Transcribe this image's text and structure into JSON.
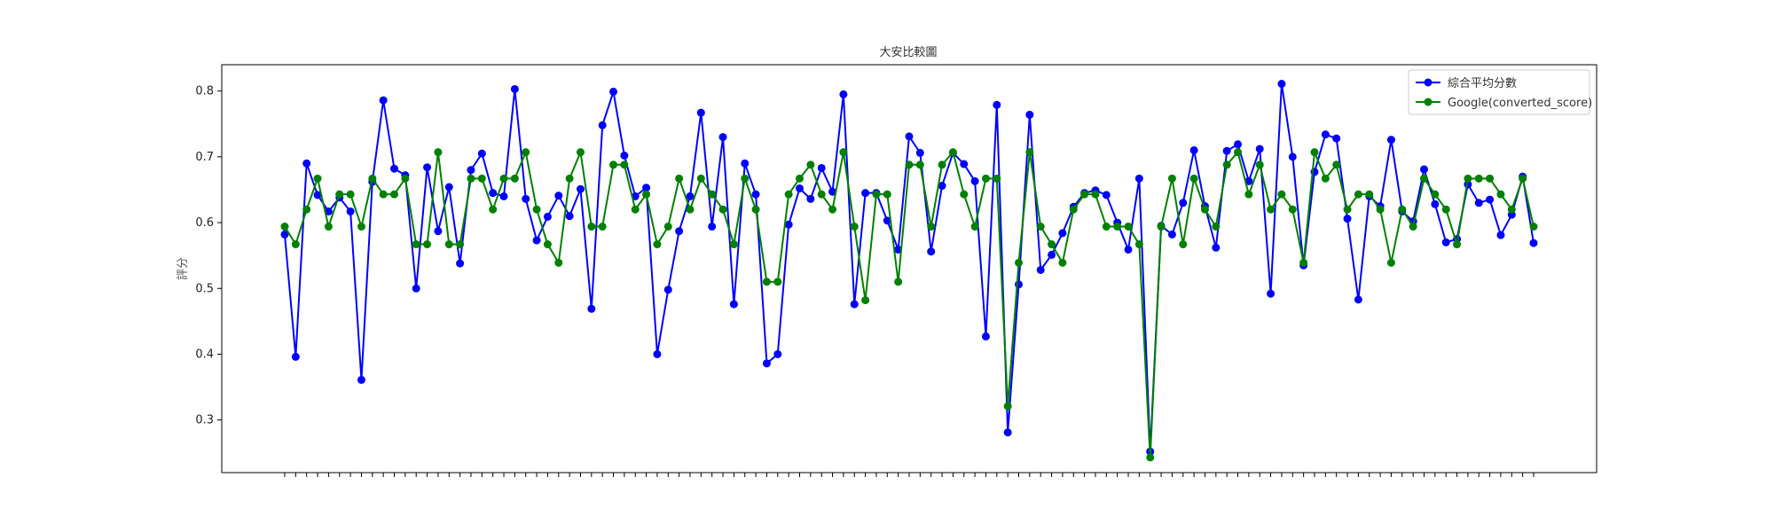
{
  "chart_data": {
    "type": "line",
    "title": "大安比較圖",
    "xlabel": "",
    "ylabel": "評分",
    "ylim": [
      0.22,
      0.84
    ],
    "yticks": [
      0.3,
      0.4,
      0.5,
      0.6,
      0.7,
      0.8
    ],
    "grid": false,
    "legend_position": "top-right",
    "series": [
      {
        "name": "綜合平均分數",
        "color": "#0000ff",
        "values": [
          0.582,
          0.396,
          0.69,
          0.642,
          0.617,
          0.638,
          0.617,
          0.361,
          0.662,
          0.786,
          0.682,
          0.672,
          0.5,
          0.684,
          0.587,
          0.654,
          0.538,
          0.68,
          0.705,
          0.645,
          0.64,
          0.803,
          0.636,
          0.573,
          0.609,
          0.641,
          0.61,
          0.651,
          0.469,
          0.748,
          0.799,
          0.702,
          0.64,
          0.653,
          0.4,
          0.498,
          0.587,
          0.64,
          0.767,
          0.594,
          0.73,
          0.476,
          0.69,
          0.643,
          0.386,
          0.4,
          0.597,
          0.652,
          0.636,
          0.683,
          0.647,
          0.795,
          0.476,
          0.645,
          0.645,
          0.603,
          0.559,
          0.731,
          0.706,
          0.556,
          0.656,
          0.706,
          0.689,
          0.663,
          0.427,
          0.779,
          0.281,
          0.506,
          0.764,
          0.528,
          0.551,
          0.584,
          0.624,
          0.645,
          0.649,
          0.642,
          0.6,
          0.559,
          0.667,
          0.252,
          0.595,
          0.582,
          0.63,
          0.71,
          0.625,
          0.562,
          0.709,
          0.719,
          0.663,
          0.712,
          0.492,
          0.811,
          0.7,
          0.535,
          0.677,
          0.734,
          0.728,
          0.606,
          0.483,
          0.64,
          0.625,
          0.726,
          0.617,
          0.602,
          0.681,
          0.628,
          0.57,
          0.575,
          0.658,
          0.63,
          0.635,
          0.581,
          0.612,
          0.67,
          0.569
        ]
      },
      {
        "name": "Google(converted_score)",
        "color": "#008000",
        "values": [
          0.594,
          0.567,
          0.62,
          0.667,
          0.594,
          0.643,
          0.643,
          0.594,
          0.667,
          0.643,
          0.643,
          0.667,
          0.567,
          0.567,
          0.707,
          0.567,
          0.567,
          0.667,
          0.667,
          0.62,
          0.667,
          0.667,
          0.707,
          0.62,
          0.567,
          0.539,
          0.667,
          0.707,
          0.594,
          0.594,
          0.688,
          0.688,
          0.62,
          0.643,
          0.567,
          0.594,
          0.667,
          0.62,
          0.667,
          0.643,
          0.62,
          0.567,
          0.667,
          0.62,
          0.51,
          0.51,
          0.643,
          0.667,
          0.688,
          0.643,
          0.62,
          0.707,
          0.594,
          0.482,
          0.643,
          0.643,
          0.51,
          0.688,
          0.688,
          0.594,
          0.688,
          0.707,
          0.643,
          0.594,
          0.667,
          0.667,
          0.321,
          0.539,
          0.707,
          0.594,
          0.567,
          0.539,
          0.62,
          0.643,
          0.643,
          0.594,
          0.594,
          0.594,
          0.567,
          0.243,
          0.594,
          0.667,
          0.567,
          0.667,
          0.62,
          0.594,
          0.688,
          0.707,
          0.643,
          0.688,
          0.62,
          0.643,
          0.62,
          0.539,
          0.707,
          0.667,
          0.688,
          0.62,
          0.643,
          0.643,
          0.62,
          0.539,
          0.62,
          0.594,
          0.667,
          0.643,
          0.62,
          0.567,
          0.667,
          0.667,
          0.667,
          0.643,
          0.62,
          0.667,
          0.594
        ]
      }
    ]
  }
}
